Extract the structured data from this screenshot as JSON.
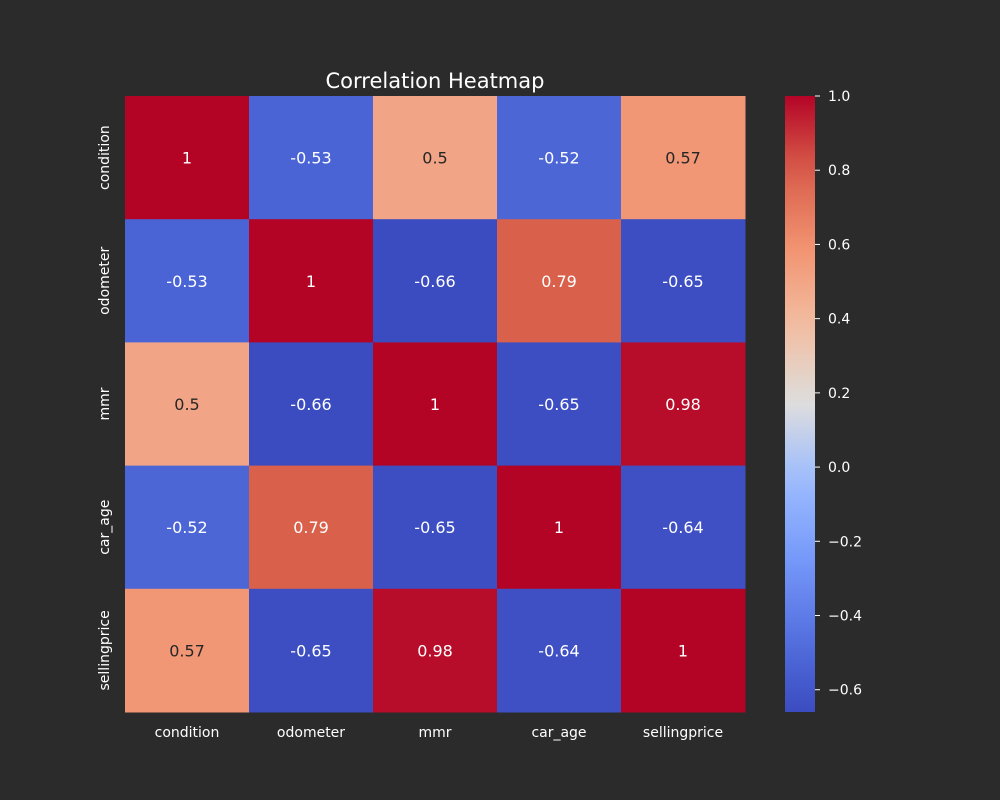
{
  "chart_data": {
    "type": "heatmap",
    "title": "Correlation Heatmap",
    "x_labels": [
      "condition",
      "odometer",
      "mmr",
      "car_age",
      "sellingprice"
    ],
    "y_labels": [
      "condition",
      "odometer",
      "mmr",
      "car_age",
      "sellingprice"
    ],
    "values": [
      [
        1,
        -0.53,
        0.5,
        -0.52,
        0.57
      ],
      [
        -0.53,
        1,
        -0.66,
        0.79,
        -0.65
      ],
      [
        0.5,
        -0.66,
        1,
        -0.65,
        0.98
      ],
      [
        -0.52,
        0.79,
        -0.65,
        1,
        -0.64
      ],
      [
        0.57,
        -0.65,
        0.98,
        -0.64,
        1
      ]
    ],
    "value_labels": [
      [
        "1",
        "-0.53",
        "0.5",
        "-0.52",
        "0.57"
      ],
      [
        "-0.53",
        "1",
        "-0.66",
        "0.79",
        "-0.65"
      ],
      [
        "0.5",
        "-0.66",
        "1",
        "-0.65",
        "0.98"
      ],
      [
        "-0.52",
        "0.79",
        "-0.65",
        "1",
        "-0.64"
      ],
      [
        "0.57",
        "-0.65",
        "0.98",
        "-0.64",
        "1"
      ]
    ],
    "colormap": "coolwarm",
    "colorbar": {
      "range": [
        -0.66,
        1.0
      ],
      "ticks": [
        1.0,
        0.8,
        0.6,
        0.4,
        0.2,
        0.0,
        -0.2,
        -0.4,
        -0.6
      ],
      "tick_labels": [
        "1.0",
        "0.8",
        "0.6",
        "0.4",
        "0.2",
        "0.0",
        "−0.2",
        "−0.4",
        "−0.6"
      ]
    },
    "colors": {
      "background": "#2b2b2b",
      "text": "#ffffff",
      "dark_cell_text": "#262626"
    }
  }
}
